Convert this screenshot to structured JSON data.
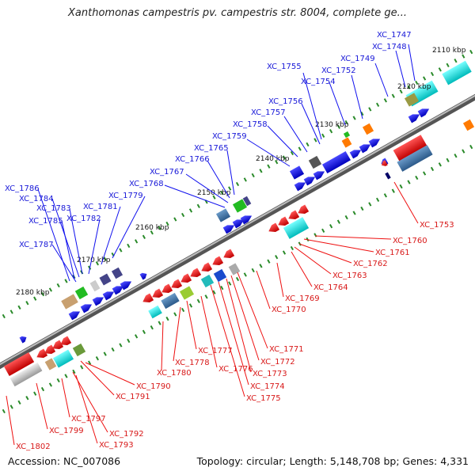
{
  "title": "Xanthomonas campestris pv. campestris str. 8004, complete ge...",
  "footer": {
    "accession": "Accession: NC_007086",
    "topology": "Topology: circular; Length: 5,148,708 bp; Genes: 4,331"
  },
  "colors": {
    "forward_gene": "#1010ee",
    "reverse_gene": "#ee1010",
    "backbone": "#777777",
    "tick": "#2a8a2a"
  },
  "kbp_marks": [
    "2110 kbp",
    "2120 kbp",
    "2130 kbp",
    "2140 kbp",
    "2150 kbp",
    "2160 kbp",
    "2170 kbp",
    "2180 kbp"
  ],
  "forward_labels": [
    "XC_1747",
    "XC_1748",
    "XC_1749",
    "XC_1752",
    "XC_1754",
    "XC_1755",
    "XC_1756",
    "XC_1757",
    "XC_1758",
    "XC_1759",
    "XC_1765",
    "XC_1766",
    "XC_1767",
    "XC_1768",
    "XC_1779",
    "XC_1781",
    "XC_1782",
    "XC_1783",
    "XC_1784",
    "XC_1785",
    "XC_1786",
    "XC_1787"
  ],
  "reverse_labels": [
    "XC_1753",
    "XC_1760",
    "XC_1761",
    "XC_1762",
    "XC_1763",
    "XC_1764",
    "XC_1769",
    "XC_1770",
    "XC_1771",
    "XC_1772",
    "XC_1773",
    "XC_1774",
    "XC_1775",
    "XC_1776",
    "XC_1777",
    "XC_1778",
    "XC_1780",
    "XC_1790",
    "XC_1791",
    "XC_1792",
    "XC_1793",
    "XC_1797",
    "XC_1799",
    "XC_1802"
  ]
}
